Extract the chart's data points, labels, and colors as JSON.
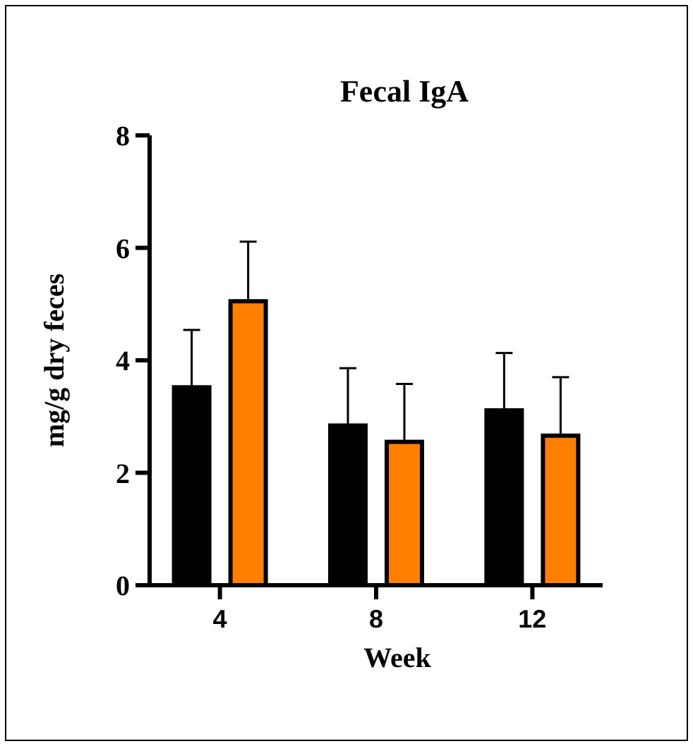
{
  "chart_data": {
    "type": "bar",
    "title": "Fecal IgA",
    "xlabel": "Week",
    "ylabel": "mg/g dry feces",
    "categories": [
      "4",
      "8",
      "12"
    ],
    "series": [
      {
        "color": "#000000",
        "values": [
          3.52,
          2.84,
          3.11
        ],
        "errors": [
          [
            3.52,
            4.54
          ],
          [
            2.84,
            3.86
          ],
          [
            3.11,
            4.13
          ]
        ]
      },
      {
        "color": "#ff8000",
        "values": [
          5.05,
          2.55,
          2.66
        ],
        "errors": [
          [
            5.05,
            6.11
          ],
          [
            2.55,
            3.58
          ],
          [
            2.66,
            3.7
          ]
        ]
      }
    ],
    "ylim": [
      0,
      8
    ],
    "yticks": [
      0,
      2,
      4,
      6,
      8
    ],
    "grid": false
  }
}
